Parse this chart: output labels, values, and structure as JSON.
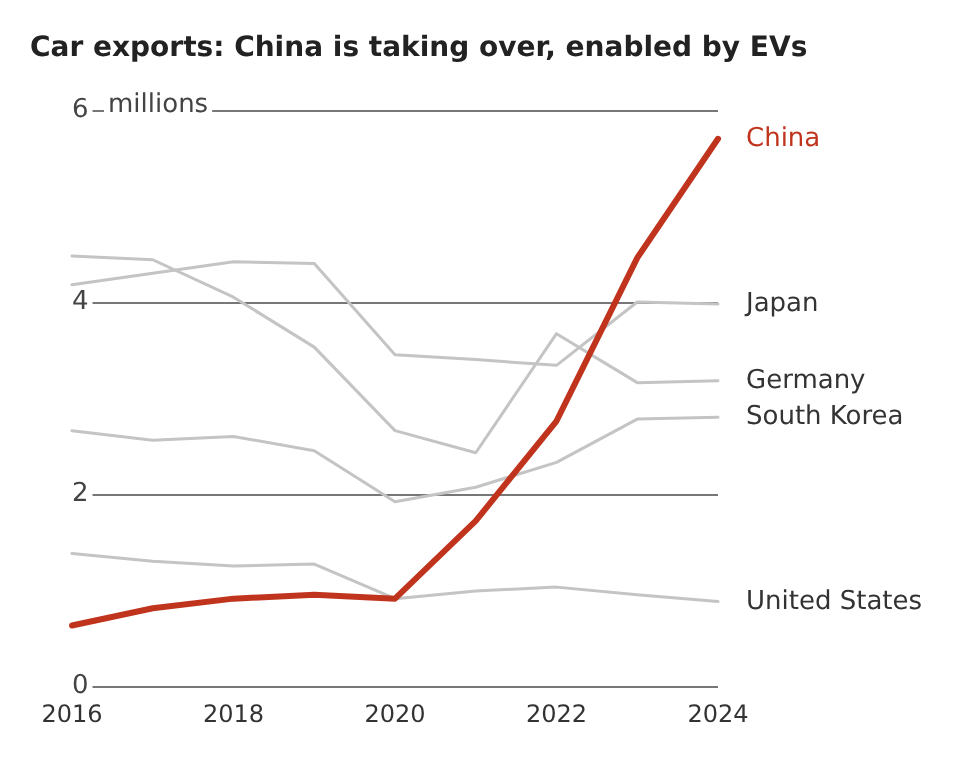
{
  "chart_data": {
    "type": "line",
    "title": "Car exports: China is taking over, enabled by EVs",
    "x": [
      2016,
      2017,
      2018,
      2019,
      2020,
      2021,
      2022,
      2023,
      2024
    ],
    "xlim": [
      2016,
      2024
    ],
    "xticks": [
      2016,
      2018,
      2020,
      2022,
      2024
    ],
    "ylim": [
      0,
      6
    ],
    "yticks": [
      0,
      2,
      4,
      6
    ],
    "ylabel": "millions",
    "grid": "y",
    "legend": false,
    "marker": "none",
    "series": [
      {
        "name": "Japan",
        "color": "#c4c4c4",
        "values": [
          4.18,
          4.3,
          4.42,
          4.4,
          3.45,
          3.4,
          3.34,
          4.0,
          3.98
        ]
      },
      {
        "name": "Germany",
        "color": "#c4c4c4",
        "values": [
          4.48,
          4.44,
          4.05,
          3.53,
          2.66,
          2.43,
          3.67,
          3.16,
          3.18
        ]
      },
      {
        "name": "South Korea",
        "color": "#c4c4c4",
        "values": [
          2.66,
          2.56,
          2.6,
          2.45,
          1.92,
          2.07,
          2.33,
          2.78,
          2.8
        ]
      },
      {
        "name": "United States",
        "color": "#c4c4c4",
        "values": [
          1.38,
          1.3,
          1.25,
          1.27,
          0.91,
          0.99,
          1.03,
          0.95,
          0.88
        ]
      },
      {
        "name": "China",
        "color": "#c0341d",
        "values": [
          0.63,
          0.81,
          0.91,
          0.95,
          0.91,
          1.72,
          2.76,
          4.46,
          5.7
        ]
      }
    ]
  }
}
